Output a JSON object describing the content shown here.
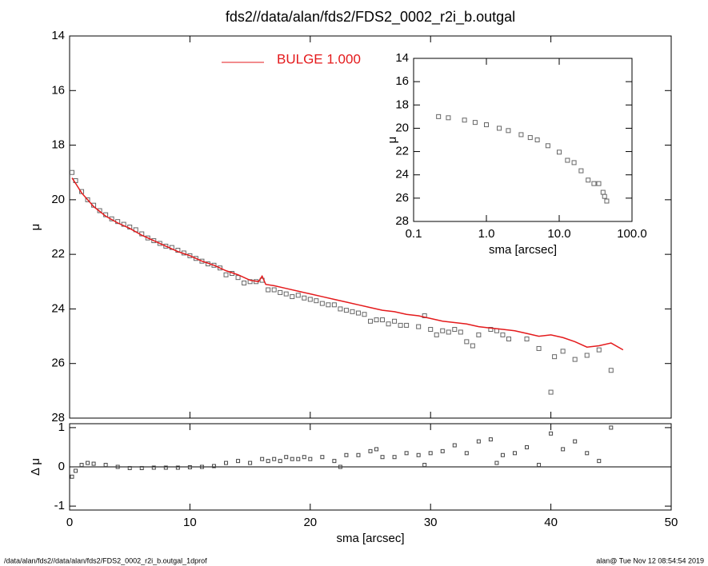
{
  "chart_data": [
    {
      "type": "scatter",
      "title": "fds2//data/alan/fds2/FDS2_0002_r2i_b.outgal",
      "ylabel": "μ",
      "xlim": [
        0,
        50
      ],
      "ylim": [
        28,
        14
      ],
      "yticks": [
        14,
        16,
        18,
        20,
        22,
        24,
        26,
        28
      ],
      "series": [
        {
          "color": "#666666",
          "mode": "markers",
          "x": [
            0.2,
            0.5,
            1,
            1.5,
            2,
            2.5,
            3,
            3.5,
            4,
            4.5,
            5,
            5.5,
            6,
            6.5,
            7,
            7.5,
            8,
            8.5,
            9,
            9.5,
            10,
            10.5,
            11,
            11.5,
            12,
            12.5,
            13,
            13.5,
            14,
            14.5,
            15,
            15.5,
            16,
            16.5,
            17,
            17.5,
            18,
            18.5,
            19,
            19.5,
            20,
            20.5,
            21,
            21.5,
            22,
            22.5,
            23,
            23.5,
            24,
            24.5,
            25,
            25.5,
            26,
            26.5,
            27,
            27.5,
            28,
            29,
            29.5,
            30,
            30.5,
            31,
            31.5,
            32,
            32.5,
            33,
            33.5,
            34,
            35,
            35.5,
            36,
            36.5,
            38,
            39,
            40,
            40.3,
            41,
            42,
            43,
            44,
            45
          ],
          "values": [
            19.0,
            19.3,
            19.7,
            20.0,
            20.2,
            20.4,
            20.55,
            20.7,
            20.8,
            20.9,
            21.0,
            21.1,
            21.25,
            21.4,
            21.5,
            21.6,
            21.7,
            21.75,
            21.85,
            21.95,
            22.05,
            22.15,
            22.25,
            22.35,
            22.4,
            22.5,
            22.75,
            22.7,
            22.85,
            23.05,
            23.0,
            23.0,
            22.95,
            23.3,
            23.3,
            23.4,
            23.45,
            23.55,
            23.5,
            23.6,
            23.65,
            23.7,
            23.8,
            23.85,
            23.85,
            24.0,
            24.05,
            24.1,
            24.15,
            24.2,
            24.45,
            24.4,
            24.4,
            24.55,
            24.45,
            24.6,
            24.6,
            24.65,
            24.25,
            24.75,
            24.95,
            24.8,
            24.85,
            24.75,
            24.85,
            25.2,
            25.35,
            24.95,
            24.75,
            24.8,
            24.95,
            25.1,
            25.1,
            25.45,
            27.05,
            25.75,
            25.55,
            25.85,
            25.7,
            25.5,
            26.25
          ]
        },
        {
          "name": "BULGE  1.000",
          "color": "#e41a1c",
          "mode": "line",
          "x": [
            0.2,
            0.5,
            1,
            2,
            3,
            4,
            5,
            6,
            7,
            8,
            9,
            10,
            11,
            12,
            13,
            14,
            15,
            15.7,
            16,
            16.3,
            17,
            18,
            19,
            20,
            21,
            22,
            23,
            24,
            25,
            26,
            27,
            28,
            29,
            30,
            31,
            32,
            33,
            34,
            35,
            36,
            37,
            38,
            39,
            40,
            41,
            42,
            43,
            44,
            45,
            46
          ],
          "values": [
            19.2,
            19.4,
            19.75,
            20.25,
            20.6,
            20.85,
            21.05,
            21.3,
            21.5,
            21.7,
            21.9,
            22.05,
            22.25,
            22.4,
            22.6,
            22.75,
            22.95,
            23.0,
            22.8,
            23.1,
            23.15,
            23.25,
            23.35,
            23.45,
            23.55,
            23.65,
            23.75,
            23.85,
            23.95,
            24.05,
            24.1,
            24.2,
            24.25,
            24.35,
            24.45,
            24.5,
            24.55,
            24.65,
            24.7,
            24.75,
            24.8,
            24.9,
            25.0,
            24.95,
            25.05,
            25.2,
            25.4,
            25.35,
            25.25,
            25.5
          ]
        }
      ]
    },
    {
      "type": "scatter",
      "xlabel": "sma [arcsec]",
      "ylabel": "Δ μ",
      "xlim": [
        0,
        50
      ],
      "xticks": [
        0,
        10,
        20,
        30,
        40,
        50
      ],
      "ylim": [
        -1.1,
        1.1
      ],
      "yticks": [
        -1,
        0,
        1
      ],
      "series": [
        {
          "color": "#444444",
          "mode": "markers",
          "x": [
            0.2,
            0.5,
            1,
            1.5,
            2,
            3,
            4,
            5,
            6,
            7,
            8,
            9,
            10,
            11,
            12,
            13,
            14,
            15,
            16,
            16.5,
            17,
            17.5,
            18,
            18.5,
            19,
            19.5,
            20,
            21,
            22,
            22.5,
            23,
            24,
            25,
            25.5,
            26,
            27,
            28,
            29,
            29.5,
            30,
            31,
            32,
            33,
            34,
            35,
            35.5,
            36,
            37,
            38,
            39,
            40,
            41,
            42,
            43,
            44,
            45
          ],
          "values": [
            -0.25,
            -0.1,
            0.05,
            0.1,
            0.08,
            0.05,
            0,
            -0.03,
            -0.03,
            -0.02,
            -0.02,
            -0.02,
            -0.01,
            0,
            0.02,
            0.1,
            0.15,
            0.1,
            0.2,
            0.15,
            0.2,
            0.15,
            0.25,
            0.2,
            0.2,
            0.25,
            0.2,
            0.25,
            0.15,
            0,
            0.3,
            0.3,
            0.4,
            0.45,
            0.25,
            0.25,
            0.35,
            0.3,
            0.05,
            0.35,
            0.4,
            0.55,
            0.35,
            0.65,
            0.7,
            0.1,
            0.3,
            0.35,
            0.5,
            0.05,
            0.85,
            0.45,
            0.65,
            0.35,
            0.15,
            1.0
          ]
        }
      ]
    },
    {
      "type": "scatter",
      "xlabel": "sma [arcsec]",
      "ylabel": "μ",
      "log_x": true,
      "xlim": [
        0.1,
        100
      ],
      "xticks": [
        0.1,
        {
          "value": 1,
          "label": "1.0"
        },
        {
          "value": 10,
          "label": "10.0"
        },
        {
          "value": 100,
          "label": "100.0"
        }
      ],
      "ylim": [
        28,
        14
      ],
      "yticks": [
        14,
        16,
        18,
        20,
        22,
        24,
        26,
        28
      ],
      "series": [
        {
          "color": "#666666",
          "mode": "markers",
          "x": [
            0.22,
            0.3,
            0.5,
            0.7,
            1,
            1.5,
            2,
            3,
            4,
            5,
            7,
            10,
            13,
            16,
            20,
            25,
            30,
            35,
            40,
            42,
            45
          ],
          "values": [
            19.0,
            19.1,
            19.3,
            19.5,
            19.7,
            20.0,
            20.2,
            20.55,
            20.8,
            21.0,
            21.5,
            22.05,
            22.75,
            22.95,
            23.65,
            24.45,
            24.75,
            24.75,
            25.5,
            25.85,
            26.25
          ]
        }
      ]
    }
  ],
  "footer": {
    "left": "/data/alan/fds2//data/alan/fds2/FDS2_0002_r2i_b.outgal_1dprof",
    "right": "alan@  Tue Nov 12 08:54:54 2019"
  }
}
